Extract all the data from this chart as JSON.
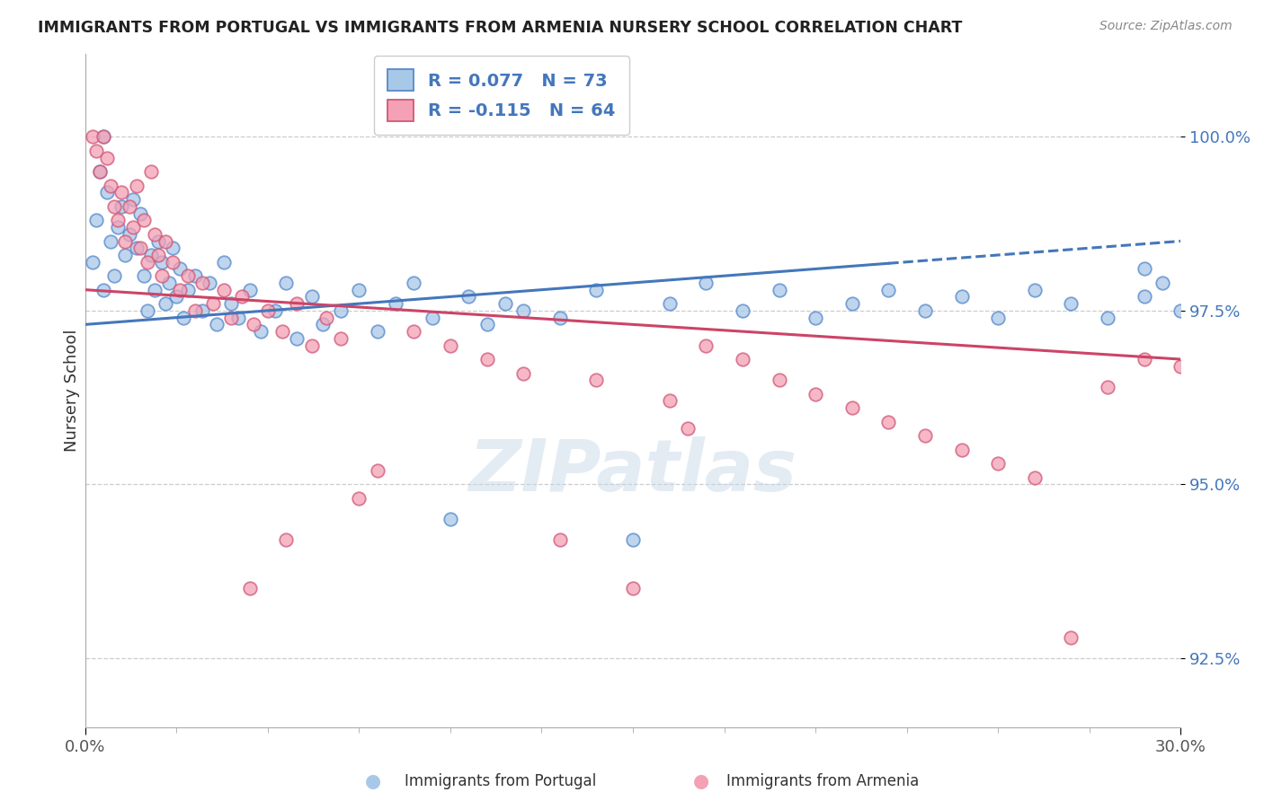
{
  "title": "IMMIGRANTS FROM PORTUGAL VS IMMIGRANTS FROM ARMENIA NURSERY SCHOOL CORRELATION CHART",
  "source": "Source: ZipAtlas.com",
  "ylabel": "Nursery School",
  "xlim": [
    0.0,
    30.0
  ],
  "ylim": [
    91.5,
    101.2
  ],
  "x_ticks": [
    0.0,
    30.0
  ],
  "x_tick_labels": [
    "0.0%",
    "30.0%"
  ],
  "y_ticks": [
    92.5,
    95.0,
    97.5,
    100.0
  ],
  "y_tick_labels": [
    "92.5%",
    "95.0%",
    "97.5%",
    "100.0%"
  ],
  "legend_label_1": "R = 0.077   N = 73",
  "legend_label_2": "R = -0.115   N = 64",
  "bottom_label_1": "Immigrants from Portugal",
  "bottom_label_2": "Immigrants from Armenia",
  "blue_color": "#a8c8e8",
  "pink_color": "#f4a0b5",
  "blue_edge_color": "#5588cc",
  "pink_edge_color": "#d05878",
  "blue_line_color": "#4477bb",
  "pink_line_color": "#cc4466",
  "watermark": "ZIPatlas",
  "blue_line_x0": 0.0,
  "blue_line_x1": 30.0,
  "blue_line_y0": 97.3,
  "blue_line_y1": 98.5,
  "blue_line_solid_end": 22.0,
  "pink_line_x0": 0.0,
  "pink_line_x1": 30.0,
  "pink_line_y0": 97.8,
  "pink_line_y1": 96.8,
  "blue_scatter_x": [
    0.2,
    0.3,
    0.4,
    0.5,
    0.5,
    0.6,
    0.7,
    0.8,
    0.9,
    1.0,
    1.1,
    1.2,
    1.3,
    1.4,
    1.5,
    1.6,
    1.7,
    1.8,
    1.9,
    2.0,
    2.1,
    2.2,
    2.3,
    2.4,
    2.5,
    2.6,
    2.7,
    2.8,
    3.0,
    3.2,
    3.4,
    3.6,
    3.8,
    4.0,
    4.2,
    4.5,
    4.8,
    5.2,
    5.5,
    5.8,
    6.2,
    6.5,
    7.0,
    7.5,
    8.0,
    8.5,
    9.0,
    9.5,
    10.0,
    10.5,
    11.0,
    11.5,
    12.0,
    13.0,
    14.0,
    15.0,
    16.0,
    17.0,
    18.0,
    19.0,
    20.0,
    21.0,
    22.0,
    23.0,
    24.0,
    25.0,
    26.0,
    27.0,
    28.0,
    29.0,
    29.5,
    30.0,
    29.0
  ],
  "blue_scatter_y": [
    98.2,
    98.8,
    99.5,
    100.0,
    97.8,
    99.2,
    98.5,
    98.0,
    98.7,
    99.0,
    98.3,
    98.6,
    99.1,
    98.4,
    98.9,
    98.0,
    97.5,
    98.3,
    97.8,
    98.5,
    98.2,
    97.6,
    97.9,
    98.4,
    97.7,
    98.1,
    97.4,
    97.8,
    98.0,
    97.5,
    97.9,
    97.3,
    98.2,
    97.6,
    97.4,
    97.8,
    97.2,
    97.5,
    97.9,
    97.1,
    97.7,
    97.3,
    97.5,
    97.8,
    97.2,
    97.6,
    97.9,
    97.4,
    94.5,
    97.7,
    97.3,
    97.6,
    97.5,
    97.4,
    97.8,
    94.2,
    97.6,
    97.9,
    97.5,
    97.8,
    97.4,
    97.6,
    97.8,
    97.5,
    97.7,
    97.4,
    97.8,
    97.6,
    97.4,
    97.7,
    97.9,
    97.5,
    98.1
  ],
  "pink_scatter_x": [
    0.2,
    0.3,
    0.4,
    0.5,
    0.6,
    0.7,
    0.8,
    0.9,
    1.0,
    1.1,
    1.2,
    1.3,
    1.4,
    1.5,
    1.6,
    1.7,
    1.8,
    1.9,
    2.0,
    2.1,
    2.2,
    2.4,
    2.6,
    2.8,
    3.0,
    3.2,
    3.5,
    3.8,
    4.0,
    4.3,
    4.6,
    5.0,
    5.4,
    5.8,
    6.2,
    6.6,
    7.0,
    7.5,
    8.0,
    9.0,
    10.0,
    11.0,
    12.0,
    13.0,
    14.0,
    15.0,
    16.0,
    16.5,
    17.0,
    18.0,
    19.0,
    20.0,
    21.0,
    22.0,
    23.0,
    24.0,
    25.0,
    26.0,
    27.0,
    28.0,
    29.0,
    30.0,
    4.5,
    5.5
  ],
  "pink_scatter_y": [
    100.0,
    99.8,
    99.5,
    100.0,
    99.7,
    99.3,
    99.0,
    98.8,
    99.2,
    98.5,
    99.0,
    98.7,
    99.3,
    98.4,
    98.8,
    98.2,
    99.5,
    98.6,
    98.3,
    98.0,
    98.5,
    98.2,
    97.8,
    98.0,
    97.5,
    97.9,
    97.6,
    97.8,
    97.4,
    97.7,
    97.3,
    97.5,
    97.2,
    97.6,
    97.0,
    97.4,
    97.1,
    94.8,
    95.2,
    97.2,
    97.0,
    96.8,
    96.6,
    94.2,
    96.5,
    93.5,
    96.2,
    95.8,
    97.0,
    96.8,
    96.5,
    96.3,
    96.1,
    95.9,
    95.7,
    95.5,
    95.3,
    95.1,
    92.8,
    96.4,
    96.8,
    96.7,
    93.5,
    94.2
  ]
}
